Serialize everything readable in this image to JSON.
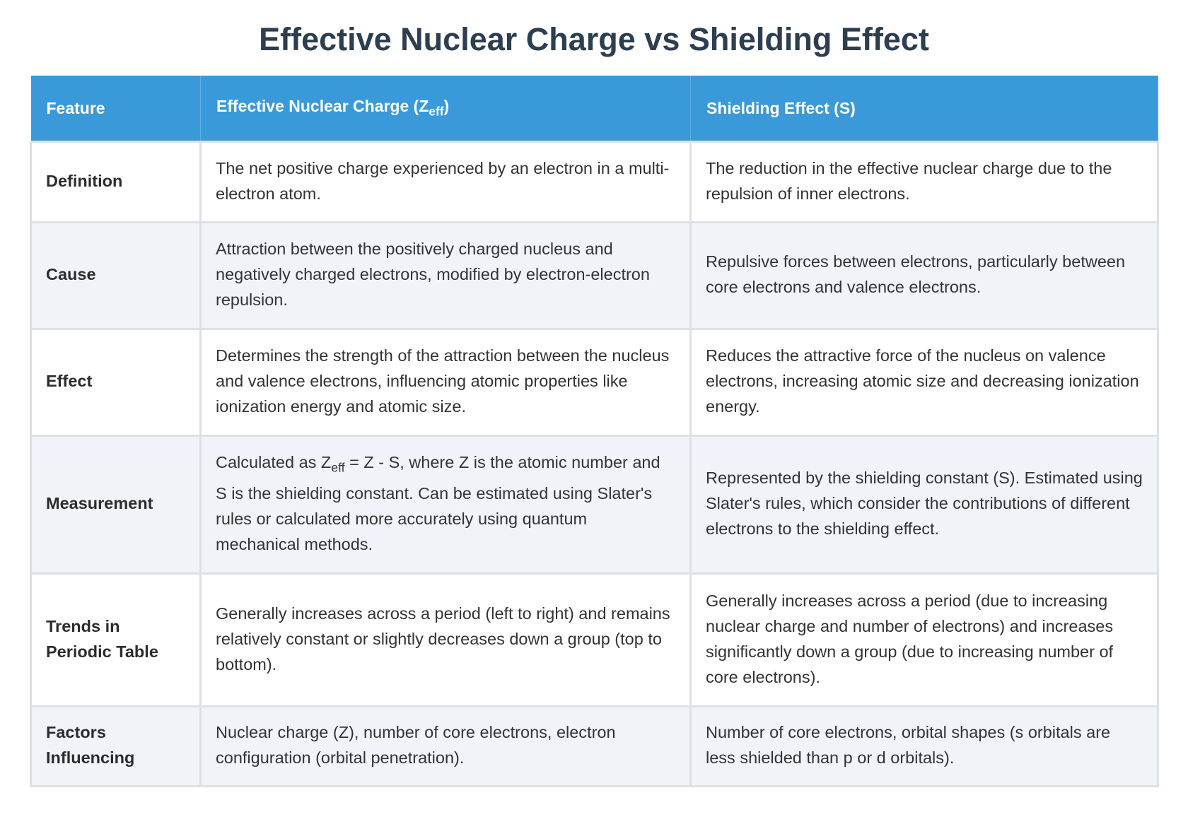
{
  "header": {
    "title": "Effective Nuclear Charge vs Shielding Effect"
  },
  "table": {
    "columns": [
      "Feature",
      [
        "Effective Nuclear Charge (Z",
        "eff",
        ")"
      ],
      "Shielding Effect (S)"
    ],
    "rows": [
      [
        "Definition",
        "The net positive charge experienced by an electron in a multi-electron atom.",
        "The reduction in the effective nuclear charge due to the repulsion of inner electrons."
      ],
      [
        "Cause",
        "Attraction between the positively charged nucleus and negatively charged electrons, modified by electron-electron repulsion.",
        "Repulsive forces between electrons, particularly between core electrons and valence electrons."
      ],
      [
        "Effect",
        "Determines the strength of the attraction between the nucleus and valence electrons, influencing atomic properties like ionization energy and atomic size.",
        "Reduces the attractive force of the nucleus on valence electrons, increasing atomic size and decreasing ionization energy."
      ],
      [
        "Measurement",
        [
          "Calculated as Z",
          "eff",
          " = Z - S, where Z is the atomic number and S is the shielding constant. Can be estimated using Slater's rules or calculated more accurately using quantum mechanical methods."
        ],
        "Represented by the shielding constant (S). Estimated using Slater's rules, which consider the contributions of different electrons to the shielding effect."
      ],
      [
        "Trends in Periodic Table",
        "Generally increases across a period (left to right) and remains relatively constant or slightly decreases down a group (top to bottom).",
        "Generally increases across a period (due to increasing nuclear charge and number of electrons) and increases significantly down a group (due to increasing number of core electrons)."
      ],
      [
        "Factors Influencing",
        "Nuclear charge (Z), number of core electrons, electron configuration (orbital penetration).",
        "Number of core electrons, orbital shapes (s orbitals are less shielded than p or d orbitals)."
      ]
    ]
  }
}
